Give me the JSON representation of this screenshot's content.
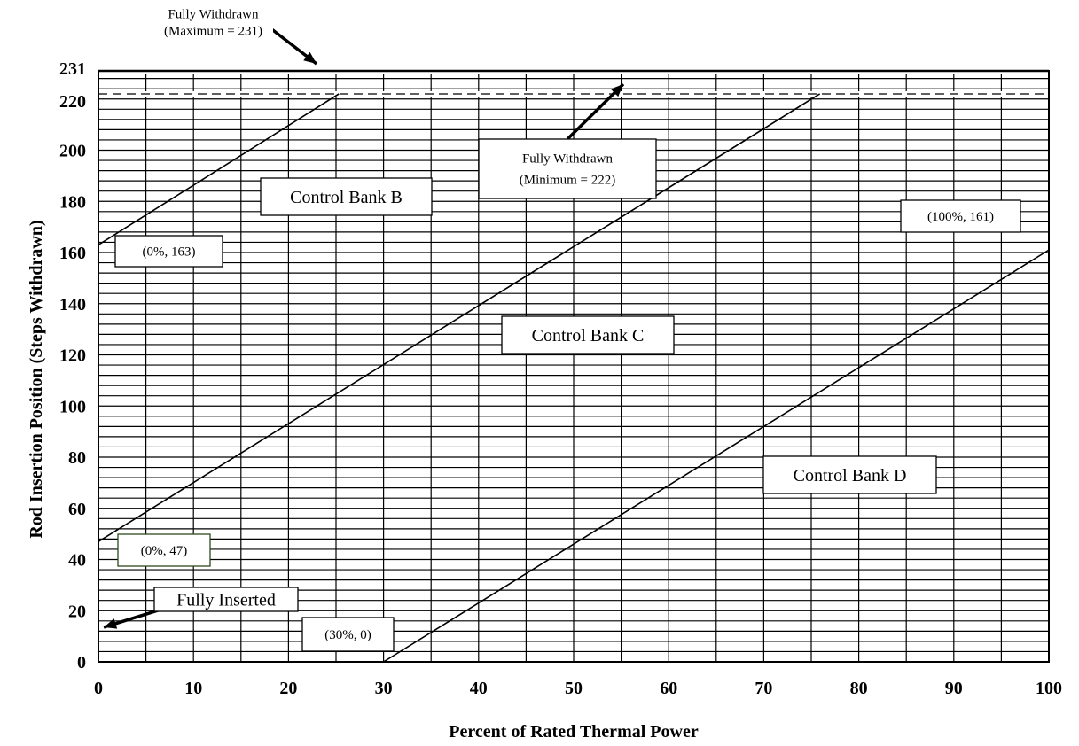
{
  "chart_data": {
    "type": "line",
    "xlabel": "Percent of Rated Thermal Power",
    "ylabel": "Rod Insertion Position (Steps Withdrawn)",
    "xlim": [
      0,
      100
    ],
    "ylim": [
      0,
      231
    ],
    "x_ticks": [
      0,
      10,
      20,
      30,
      40,
      50,
      60,
      70,
      80,
      90,
      100
    ],
    "y_ticks": [
      0,
      20,
      40,
      60,
      80,
      100,
      120,
      140,
      160,
      180,
      200,
      220,
      231
    ],
    "grid": true,
    "grid_minor": {
      "x_step": 5,
      "y_step": 4
    },
    "series": [
      {
        "name": "Control Bank B",
        "x": [
          0,
          25.3
        ],
        "y": [
          163,
          222
        ]
      },
      {
        "name": "Control Bank C",
        "x": [
          0,
          75.9
        ],
        "y": [
          47,
          222
        ]
      },
      {
        "name": "Control Bank D",
        "x": [
          30,
          100
        ],
        "y": [
          0,
          161
        ]
      }
    ],
    "reference_lines": [
      {
        "y": 231,
        "style": "solid"
      },
      {
        "y": 222,
        "style": "dashed"
      }
    ],
    "annotations": [
      {
        "lines": [
          "Fully Withdrawn",
          "(Maximum = 231)"
        ],
        "boxed": false
      },
      {
        "lines": [
          "Fully Withdrawn",
          "(Minimum = 222)"
        ],
        "boxed": true
      },
      {
        "lines": [
          "(0%, 163)"
        ],
        "boxed": true
      },
      {
        "lines": [
          "(0%, 47)"
        ],
        "boxed": true
      },
      {
        "lines": [
          "(100%, 161)"
        ],
        "boxed": true
      },
      {
        "lines": [
          "(30%, 0)"
        ],
        "boxed": true
      },
      {
        "lines": [
          "Fully Inserted"
        ],
        "boxed": true
      },
      {
        "lines": [
          "Control Bank B"
        ],
        "boxed": true
      },
      {
        "lines": [
          "Control Bank C"
        ],
        "boxed": true
      },
      {
        "lines": [
          "Control Bank D"
        ],
        "boxed": true
      }
    ]
  }
}
